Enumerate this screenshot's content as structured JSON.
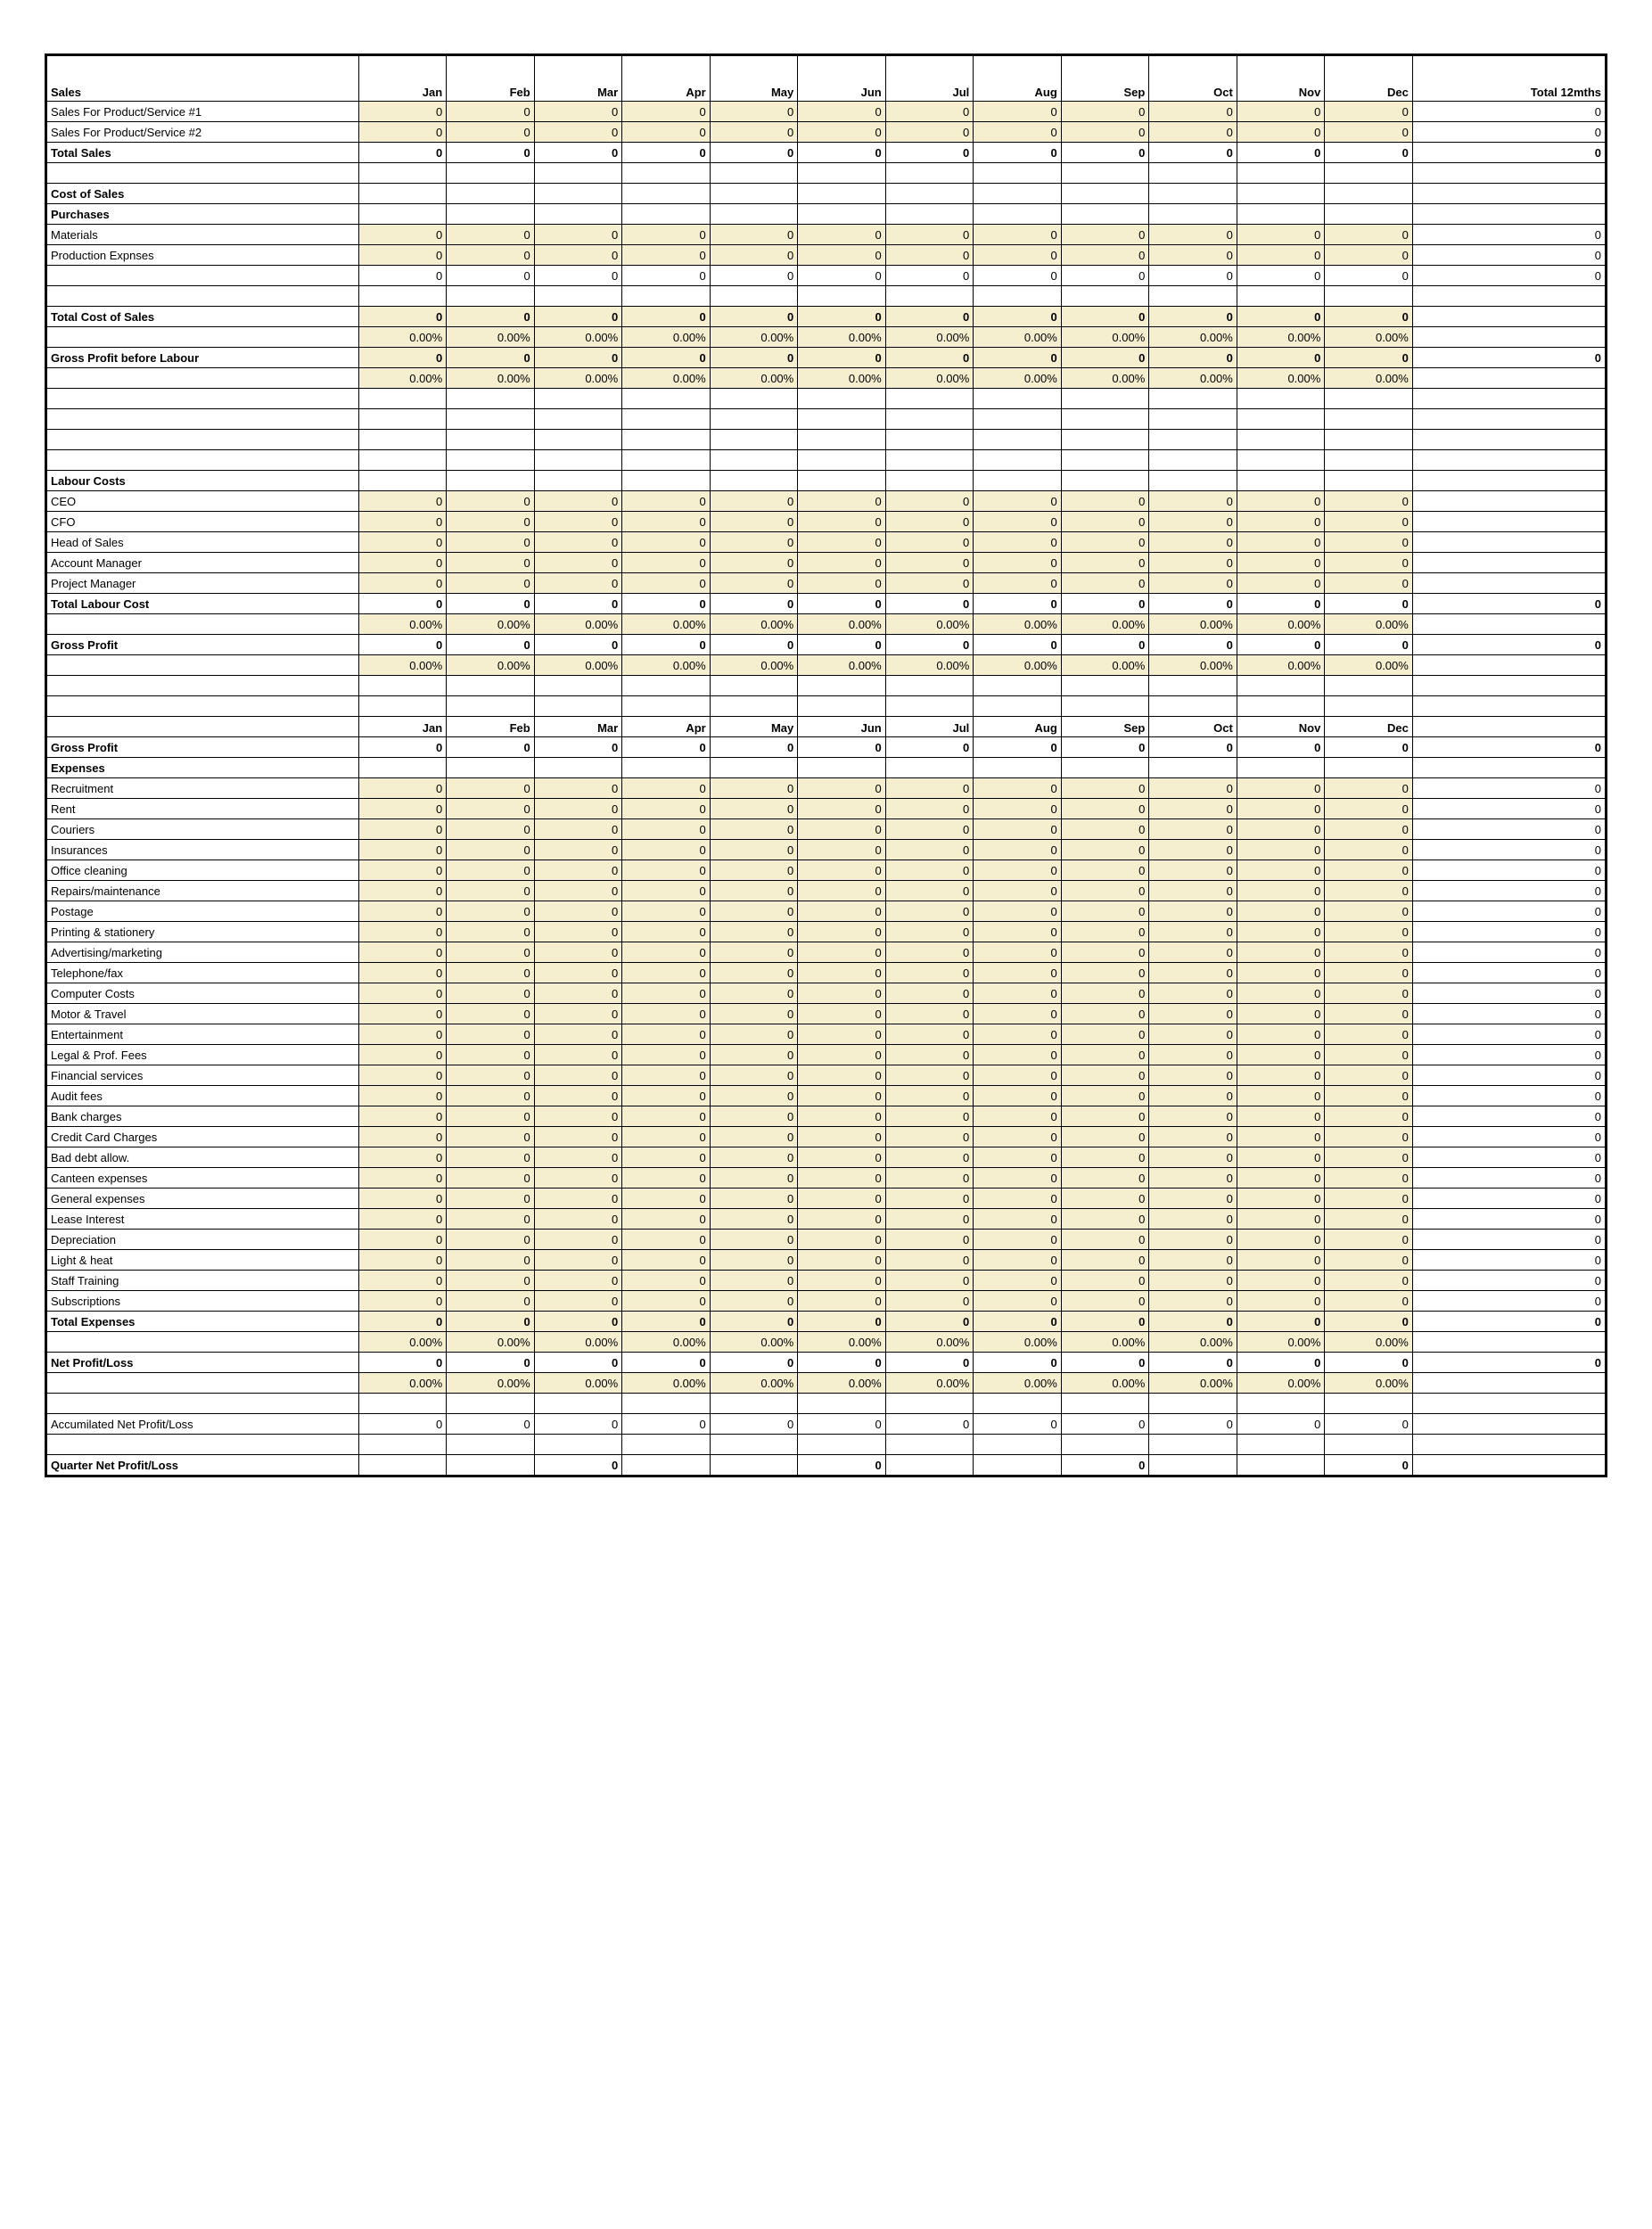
{
  "months": [
    "Jan",
    "Feb",
    "Mar",
    "Apr",
    "May",
    "Jun",
    "Jul",
    "Aug",
    "Sep",
    "Oct",
    "Nov",
    "Dec"
  ],
  "total_label": "Total 12mths",
  "zero": "0",
  "pct_zero": "0.00%",
  "shaded_bg": "#f5eecf",
  "section1": {
    "header": "Sales",
    "rows": [
      {
        "label": "Sales For Product/Service #1",
        "shaded": true,
        "total": "0"
      },
      {
        "label": "Sales For Product/Service #2",
        "shaded": true,
        "total": "0"
      },
      {
        "label": "Total Sales",
        "bold": true,
        "shaded": false,
        "total": "0"
      }
    ]
  },
  "section_cos": {
    "header1": "Cost of Sales",
    "header2": "Purchases",
    "rows": [
      {
        "label": "Materials",
        "shaded": true,
        "total": "0"
      },
      {
        "label": "Production Expnses",
        "shaded": true,
        "total": "0"
      },
      {
        "label": "",
        "shaded": false,
        "total": "0"
      }
    ],
    "total_cos_label": "Total Cost of Sales",
    "gross_before_labour_label": "Gross Profit before Labour"
  },
  "labour": {
    "header": "Labour Costs",
    "rows": [
      {
        "label": "CEO",
        "shaded": true
      },
      {
        "label": "CFO",
        "shaded": true
      },
      {
        "label": "Head of Sales",
        "shaded": true
      },
      {
        "label": "Account Manager",
        "shaded": true
      },
      {
        "label": "Project Manager",
        "shaded": true
      }
    ],
    "total_label": "Total Labour Cost",
    "gross_profit_label": "Gross Profit"
  },
  "expenses": {
    "gross_profit_label": "Gross Profit",
    "header": "Expenses",
    "rows": [
      "Recruitment",
      "Rent",
      "Couriers",
      "Insurances",
      "Office cleaning",
      "Repairs/maintenance",
      "Postage",
      "Printing & stationery",
      "Advertising/marketing",
      "Telephone/fax",
      "Computer Costs",
      "Motor & Travel",
      "Entertainment",
      "Legal & Prof. Fees",
      "Financial services",
      "Audit fees",
      "Bank charges",
      "Credit Card Charges",
      "Bad debt allow.",
      "Canteen expenses",
      "General expenses",
      "Lease Interest",
      "Depreciation",
      "Light & heat",
      "Staff Training",
      "Subscriptions"
    ],
    "total_label": "Total Expenses",
    "net_label": "Net Profit/Loss",
    "accum_label": "Accumilated Net Profit/Loss",
    "quarter_label": "Quarter Net Profit/Loss"
  },
  "quarter_values": {
    "Mar": "0",
    "Jun": "0",
    "Sep": "0",
    "Dec": "0"
  }
}
